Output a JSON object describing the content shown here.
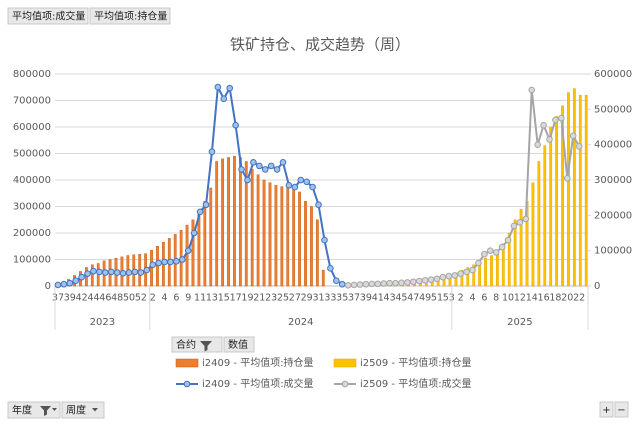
{
  "field_buttons": [
    "平均值项:成交量",
    "平均值项:持仓量"
  ],
  "legend_header": {
    "field": "合约",
    "value_label": "数值"
  },
  "bottom_fields": [
    "年度",
    "周度"
  ],
  "zoom_buttons": [
    "+",
    "−"
  ],
  "chart_data": {
    "type": "combo",
    "title": "铁矿持仓、成交趋势（周）",
    "categories": [
      "37",
      null,
      "39",
      null,
      "42",
      null,
      "44",
      null,
      "46",
      null,
      "48",
      null,
      "50",
      null,
      "52",
      null,
      "2",
      null,
      "4",
      null,
      "6",
      null,
      "9",
      null,
      "11",
      null,
      "13",
      null,
      "15",
      null,
      "17",
      null,
      "19",
      null,
      "21",
      null,
      "23",
      null,
      "25",
      null,
      "27",
      null,
      "29",
      null,
      "31",
      null,
      "33",
      null,
      "35",
      null,
      "37",
      null,
      "39",
      null,
      "41",
      null,
      "43",
      null,
      "45",
      null,
      "47",
      null,
      "49",
      null,
      "51",
      null,
      "53",
      null,
      "2",
      null,
      "4",
      null,
      "6",
      null,
      "8",
      null,
      "10",
      null,
      "12",
      null,
      "14",
      null,
      "16",
      null,
      "18",
      null,
      "20",
      null,
      "22",
      null
    ],
    "x_groups": [
      {
        "label": "2023",
        "size": 16
      },
      {
        "label": "2024",
        "size": 51
      },
      {
        "label": "2025",
        "size": 23
      }
    ],
    "ylim": [
      0,
      800000
    ],
    "yticks": [
      0,
      100000,
      200000,
      300000,
      400000,
      500000,
      600000,
      700000,
      800000
    ],
    "y2lim": [
      0,
      600000
    ],
    "y2ticks": [
      0,
      100000,
      200000,
      300000,
      400000,
      500000,
      600000
    ],
    "grid": true,
    "series": [
      {
        "name": "i2409 - 平均值项:持仓量",
        "type": "bar",
        "axis": "y",
        "color": "#ed7d31",
        "values": [
          10000,
          15000,
          25000,
          40000,
          55000,
          70000,
          80000,
          85000,
          95000,
          100000,
          105000,
          110000,
          115000,
          118000,
          120000,
          122000,
          135000,
          150000,
          165000,
          180000,
          195000,
          210000,
          230000,
          250000,
          270000,
          320000,
          370000,
          470000,
          480000,
          485000,
          490000,
          485000,
          470000,
          440000,
          420000,
          400000,
          390000,
          380000,
          375000,
          370000,
          365000,
          355000,
          320000,
          300000,
          250000,
          60000,
          null,
          null,
          null,
          null,
          null,
          null,
          null,
          null,
          null,
          null,
          null,
          null,
          null,
          null,
          null,
          null,
          null,
          null,
          null,
          null,
          null,
          null,
          null,
          null,
          null,
          null,
          null,
          null,
          null,
          null,
          null,
          null,
          null,
          null,
          null,
          null,
          null,
          null,
          null,
          null,
          null,
          null,
          null,
          null
        ]
      },
      {
        "name": "i2509 - 平均值项:持仓量",
        "type": "bar",
        "axis": "y",
        "color": "#ffc000",
        "values": [
          null,
          null,
          null,
          null,
          null,
          null,
          null,
          null,
          null,
          null,
          null,
          null,
          null,
          null,
          null,
          null,
          null,
          null,
          null,
          null,
          null,
          null,
          null,
          null,
          null,
          null,
          null,
          null,
          null,
          null,
          null,
          null,
          null,
          null,
          null,
          null,
          null,
          null,
          null,
          null,
          null,
          null,
          null,
          null,
          null,
          null,
          null,
          null,
          null,
          5000,
          7000,
          8000,
          9000,
          10000,
          11000,
          12000,
          13000,
          14000,
          16000,
          18000,
          20000,
          24000,
          28000,
          32000,
          36000,
          40000,
          45000,
          50000,
          60000,
          70000,
          80000,
          95000,
          105000,
          115000,
          135000,
          160000,
          200000,
          250000,
          290000,
          320000,
          390000,
          470000,
          530000,
          600000,
          640000,
          680000,
          730000,
          745000,
          720000,
          720000
        ]
      },
      {
        "name": "i2409 - 平均值项:成交量",
        "type": "line",
        "axis": "y2",
        "color": "#4472c4",
        "values": [
          3000,
          5000,
          8000,
          15000,
          25000,
          35000,
          42000,
          40000,
          38000,
          40000,
          38000,
          36000,
          38000,
          40000,
          38000,
          45000,
          60000,
          65000,
          68000,
          68000,
          70000,
          75000,
          100000,
          150000,
          210000,
          230000,
          380000,
          563000,
          530000,
          560000,
          455000,
          330000,
          300000,
          350000,
          340000,
          330000,
          340000,
          330000,
          350000,
          285000,
          280000,
          300000,
          295000,
          280000,
          230000,
          130000,
          50000,
          15000,
          5000,
          null,
          null,
          null,
          null,
          null,
          null,
          null,
          null,
          null,
          null,
          null,
          null,
          null,
          null,
          null,
          null,
          null,
          null,
          null,
          null,
          null,
          null,
          null,
          null,
          null,
          null,
          null,
          null,
          null,
          null,
          null,
          null,
          null,
          null,
          null,
          null,
          null,
          null,
          null,
          null,
          null
        ]
      },
      {
        "name": "i2509 - 平均值项:成交量",
        "type": "line",
        "axis": "y2",
        "color": "#a5a5a5",
        "values": [
          null,
          null,
          null,
          null,
          null,
          null,
          null,
          null,
          null,
          null,
          null,
          null,
          null,
          null,
          null,
          null,
          null,
          null,
          null,
          null,
          null,
          null,
          null,
          null,
          null,
          null,
          null,
          null,
          null,
          null,
          null,
          null,
          null,
          null,
          null,
          null,
          null,
          null,
          null,
          null,
          null,
          null,
          null,
          null,
          null,
          null,
          null,
          null,
          null,
          2000,
          3000,
          4000,
          5000,
          6000,
          6000,
          7000,
          8000,
          8000,
          9000,
          10000,
          12000,
          14000,
          16000,
          18000,
          20000,
          25000,
          28000,
          30000,
          35000,
          40000,
          45000,
          65000,
          90000,
          100000,
          95000,
          110000,
          130000,
          170000,
          180000,
          190000,
          555000,
          400000,
          455000,
          415000,
          470000,
          475000,
          305000,
          425000,
          395000,
          null
        ]
      }
    ]
  }
}
